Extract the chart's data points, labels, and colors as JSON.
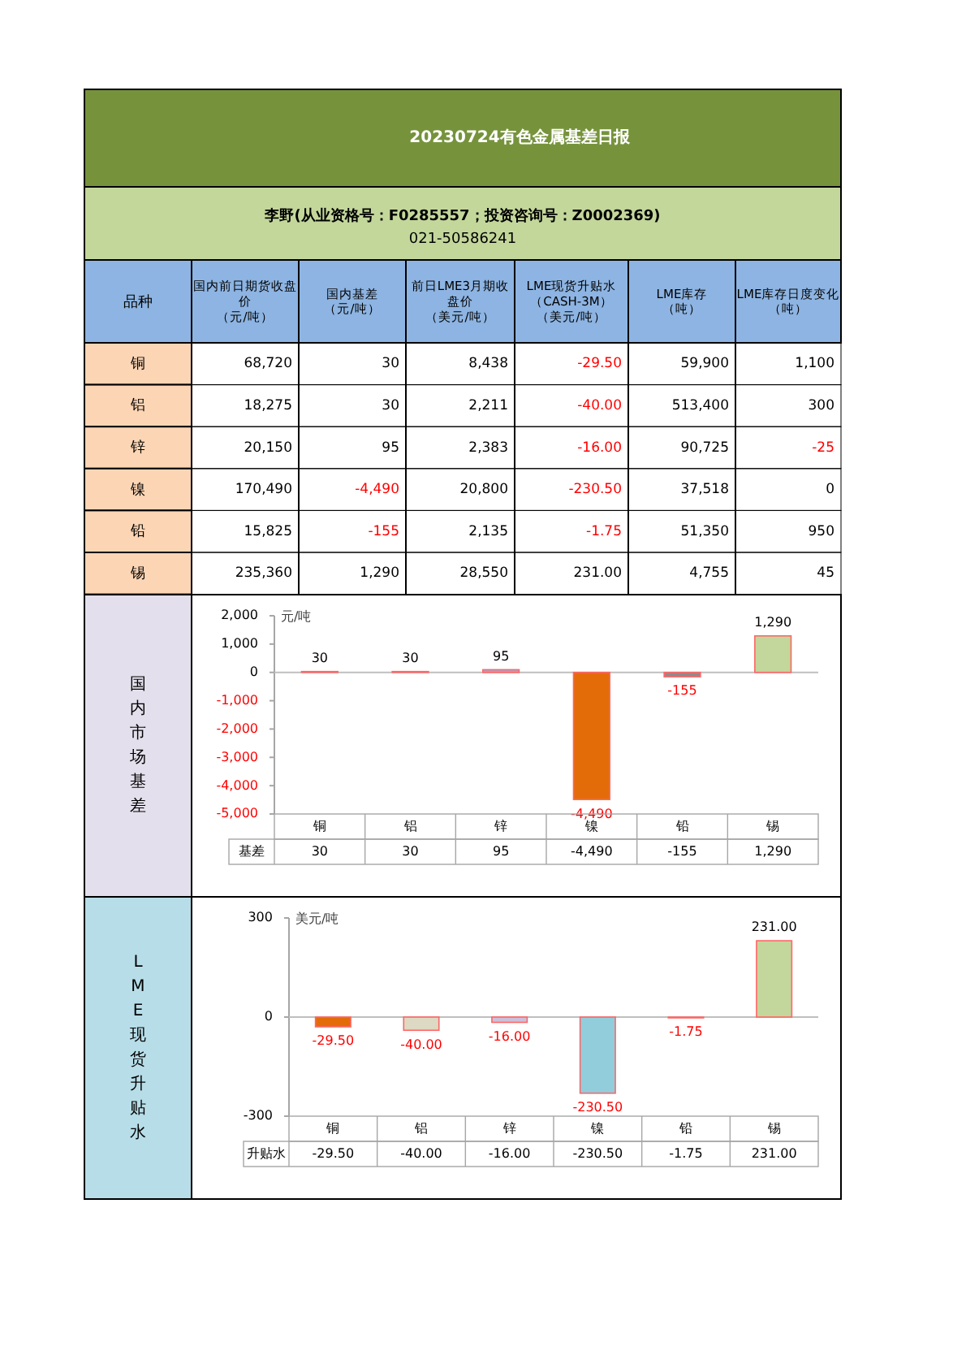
{
  "chart_data": [
    {
      "type": "other",
      "title": "20230724有色金属基差日报",
      "subtitle": "李野(从业资格号：F0285557；投资咨询号：Z0002369)",
      "annotations": [
        "021-50586241"
      ],
      "ylabel": "品种",
      "categories": [
        "国内前日期货收盘价（元/吨）",
        "国内基差（元/吨）",
        "前日LME3月期收盘价（美元/吨）",
        "LME现货升贴水（CASH-3M）（美元/吨）",
        "LME库存（吨）",
        "LME库存日度变化（吨）"
      ],
      "y_categories": [
        "铜",
        "铝",
        "锌",
        "镍",
        "铅",
        "锡"
      ],
      "cell_labels": [
        [
          "68,720",
          "30",
          "8,438",
          "-29.50",
          "59,900",
          "1,100"
        ],
        [
          "18,275",
          "30",
          "2,211",
          "-40.00",
          "513,400",
          "300"
        ],
        [
          "20,150",
          "95",
          "2,383",
          "-16.00",
          "90,725",
          "-25"
        ],
        [
          "170,490",
          "-4,490",
          "20,800",
          "-230.50",
          "37,518",
          "0"
        ],
        [
          "15,825",
          "-155",
          "2,135",
          "-1.75",
          "51,350",
          "950"
        ],
        [
          "235,360",
          "1,290",
          "28,550",
          "231.00",
          "4,755",
          "45"
        ]
      ]
    },
    {
      "type": "bar",
      "title": "国内市场基差",
      "ylabel": "元/吨",
      "categories": [
        "铜",
        "铝",
        "锌",
        "镍",
        "铅",
        "锡"
      ],
      "series": [
        {
          "name": "基差",
          "values": [
            30,
            30,
            95,
            -4490,
            -155,
            1290
          ],
          "value_labels": [
            "30",
            "30",
            "95",
            "-4,490",
            "-155",
            "1,290"
          ],
          "colors": [
            "#c0504d",
            "#c0504d",
            "#b3a2c7",
            "#e36c09",
            "#8c8c8c",
            "#c3d69b"
          ]
        }
      ],
      "ylim": [
        -5000,
        2000
      ],
      "yticks": [
        {
          "value": -5000,
          "label": "-5,000"
        },
        {
          "value": -4000,
          "label": "-4,000"
        },
        {
          "value": -3000,
          "label": "-3,000"
        },
        {
          "value": -2000,
          "label": "-2,000"
        },
        {
          "value": -1000,
          "label": "-1,000"
        },
        0,
        {
          "value": 1000,
          "label": "1,000"
        },
        {
          "value": 2000,
          "label": "2,000"
        }
      ]
    },
    {
      "type": "bar",
      "title": "LME现货升贴水",
      "ylabel": "美元/吨",
      "categories": [
        "铜",
        "铝",
        "锌",
        "镍",
        "铅",
        "锡"
      ],
      "series": [
        {
          "name": "升贴水",
          "values": [
            -29.5,
            -40,
            -16,
            -230.5,
            -1.75,
            231
          ],
          "value_labels": [
            "-29.50",
            "-40.00",
            "-16.00",
            "-230.50",
            "-1.75",
            "231.00"
          ],
          "colors": [
            "#e36c09",
            "#ddd9c3",
            "#ccc0da",
            "#92cddc",
            "#f2dcdb",
            "#c3d69b"
          ]
        }
      ],
      "ylim": [
        -300,
        300
      ],
      "yticks": [
        -300,
        0,
        300
      ]
    }
  ]
}
